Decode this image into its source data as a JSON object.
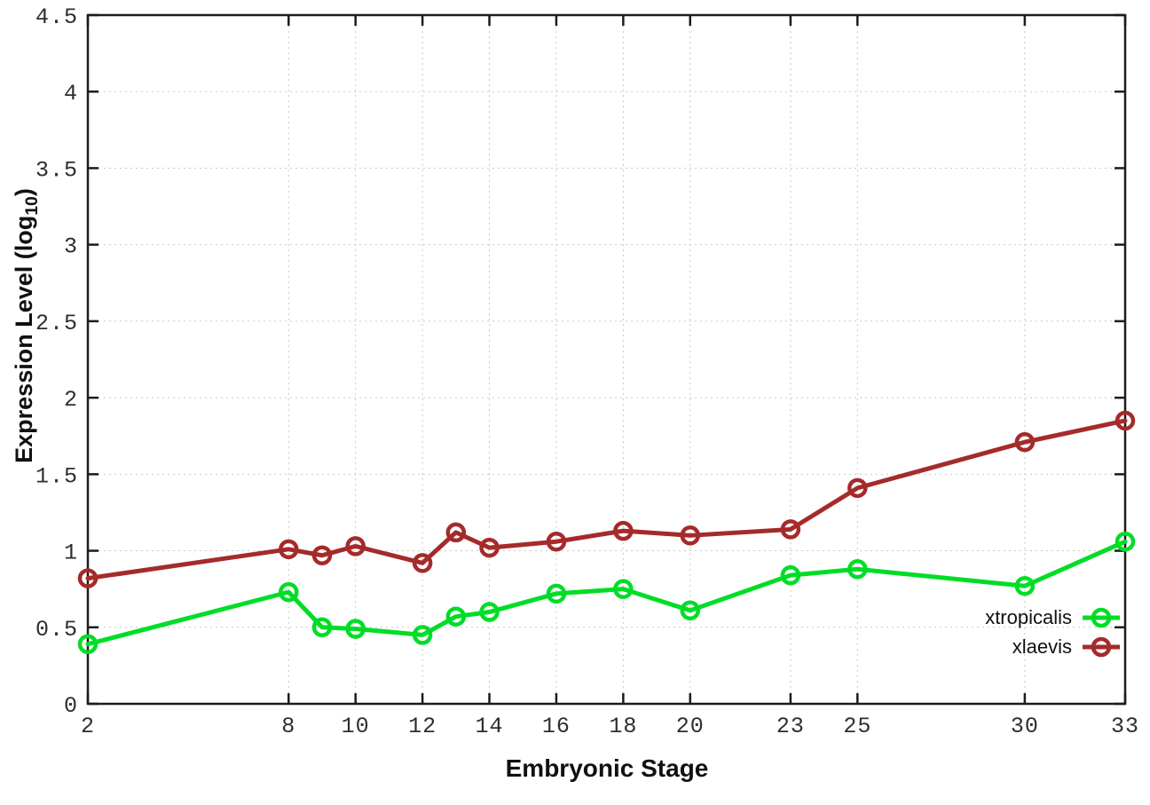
{
  "figure": {
    "xlabel": "Embryonic Stage",
    "ylabel": {
      "pre": "Expression Level (log",
      "sub": "10",
      "post": ")"
    }
  },
  "chart_data": {
    "type": "line",
    "title": "",
    "xlabel": "Embryonic Stage",
    "ylabel": "Expression Level (log10)",
    "x": [
      2,
      8,
      9,
      10,
      12,
      13,
      14,
      16,
      18,
      20,
      23,
      25,
      30,
      33
    ],
    "x_ticks": [
      2,
      8,
      10,
      12,
      14,
      16,
      18,
      20,
      23,
      25,
      30,
      33
    ],
    "y_ticks": [
      0,
      0.5,
      1,
      1.5,
      2,
      2.5,
      3,
      3.5,
      4,
      4.5
    ],
    "xlim": [
      2,
      33
    ],
    "ylim": [
      0,
      4.5
    ],
    "grid": true,
    "grid_style": "dotted",
    "legend_position": "inside-bottom-right",
    "marker": "open-circle",
    "series": [
      {
        "name": "xtropicalis",
        "color": "#00dd26",
        "values": [
          0.39,
          0.73,
          0.5,
          0.49,
          0.45,
          0.57,
          0.6,
          0.72,
          0.75,
          0.61,
          0.84,
          0.88,
          0.77,
          1.06
        ]
      },
      {
        "name": "xlaevis",
        "color": "#a52a2a",
        "values": [
          0.82,
          1.01,
          0.97,
          1.03,
          0.92,
          1.12,
          1.02,
          1.06,
          1.13,
          1.1,
          1.14,
          1.41,
          1.71,
          1.85
        ]
      }
    ],
    "colors": {
      "background": "#ffffff",
      "border": "#1c1c1c",
      "gridline": "#c8c8c8",
      "tick_text": "#2e2e2e"
    }
  }
}
